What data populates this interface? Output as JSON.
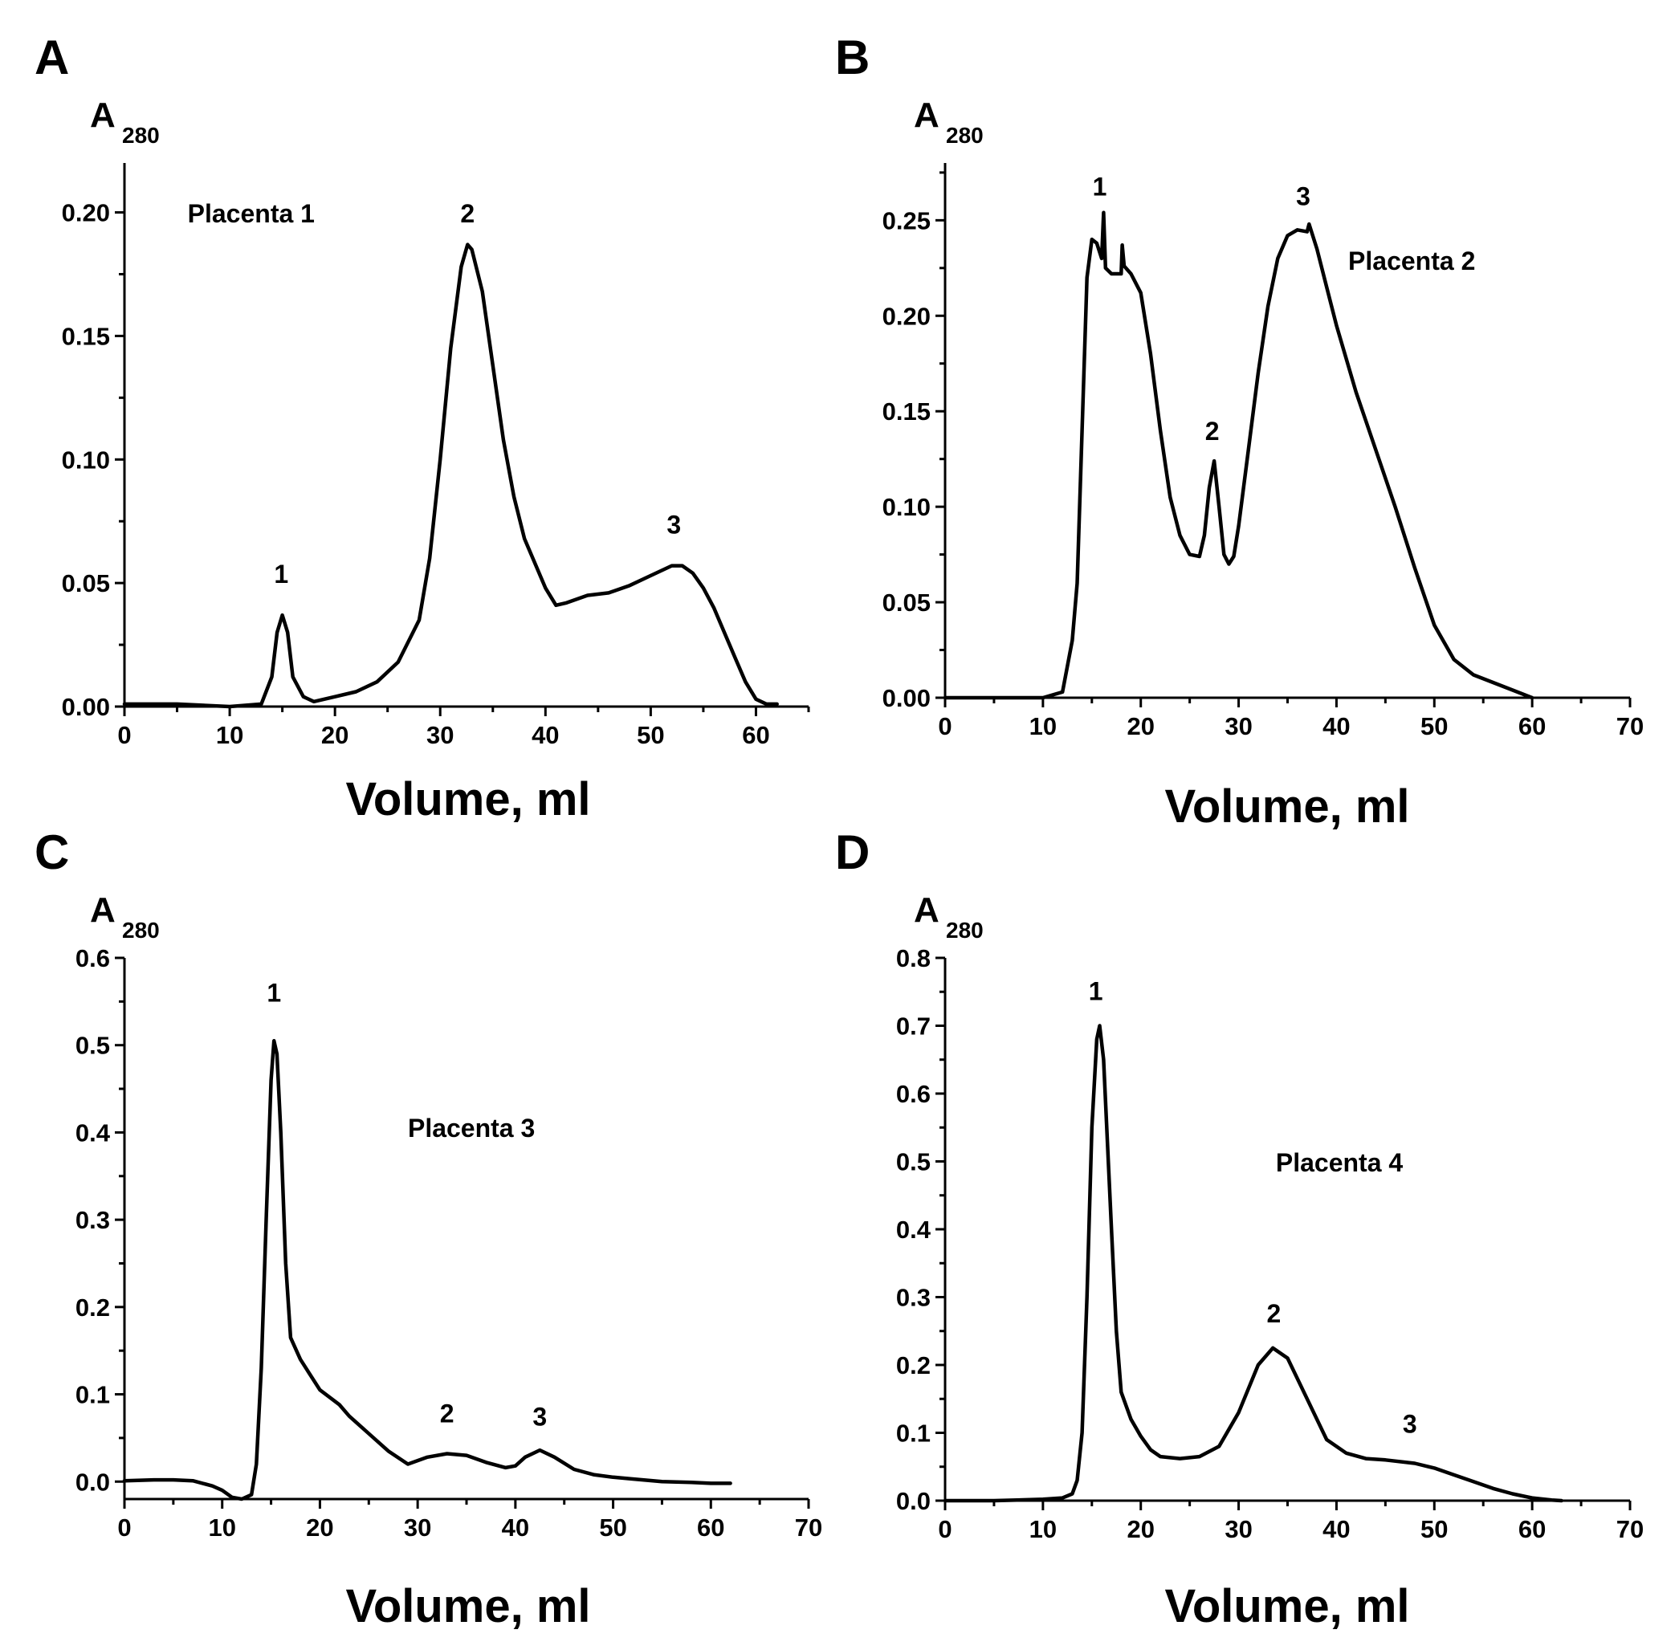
{
  "chart_data": [
    {
      "type": "line",
      "panel": "A",
      "ylabel_main": "A",
      "ylabel_sub": "280",
      "xlabel": "Volume, ml",
      "xlim": [
        0,
        65
      ],
      "ylim": [
        0,
        0.22
      ],
      "xticks": [
        0,
        10,
        20,
        30,
        40,
        50,
        60
      ],
      "xtick_labels": [
        "0",
        "10",
        "20",
        "30",
        "40",
        "50",
        "60"
      ],
      "yticks": [
        0,
        0.05,
        0.1,
        0.15,
        0.2
      ],
      "ytick_labels": [
        "0.00",
        "0.05",
        "0.10",
        "0.15",
        "0.20"
      ],
      "sample": {
        "text": "Placenta 1",
        "x": 6.0,
        "y": 0.196
      },
      "peaks": [
        {
          "label": "1",
          "x": 14.9,
          "y": 0.05
        },
        {
          "label": "2",
          "x": 32.6,
          "y": 0.196
        },
        {
          "label": "3",
          "x": 52.2,
          "y": 0.07
        }
      ],
      "series": [
        {
          "name": "Placenta 1",
          "x": [
            0,
            5,
            10,
            13,
            14,
            14.5,
            15,
            15.5,
            16,
            17,
            18,
            20,
            22,
            24,
            26,
            28,
            29,
            30,
            31,
            32,
            32.6,
            33,
            34,
            35,
            36,
            37,
            38,
            40,
            41,
            42,
            44,
            46,
            48,
            50,
            52,
            53,
            54,
            55,
            56,
            57,
            58,
            59,
            60,
            61,
            62
          ],
          "y": [
            0.001,
            0.001,
            0.0,
            0.001,
            0.012,
            0.03,
            0.037,
            0.03,
            0.012,
            0.004,
            0.002,
            0.004,
            0.006,
            0.01,
            0.018,
            0.035,
            0.06,
            0.1,
            0.145,
            0.178,
            0.187,
            0.185,
            0.168,
            0.138,
            0.108,
            0.085,
            0.068,
            0.048,
            0.041,
            0.042,
            0.045,
            0.046,
            0.049,
            0.053,
            0.057,
            0.057,
            0.054,
            0.048,
            0.04,
            0.03,
            0.02,
            0.01,
            0.003,
            0.001,
            0.001
          ]
        }
      ]
    },
    {
      "type": "line",
      "panel": "B",
      "ylabel_main": "A",
      "ylabel_sub": "280",
      "xlabel": "Volume, ml",
      "xlim": [
        0,
        70
      ],
      "ylim": [
        0,
        0.28
      ],
      "xticks": [
        0,
        10,
        20,
        30,
        40,
        50,
        60,
        70
      ],
      "xtick_labels": [
        "0",
        "10",
        "20",
        "30",
        "40",
        "50",
        "60",
        "70"
      ],
      "yticks": [
        0,
        0.05,
        0.1,
        0.15,
        0.2,
        0.25
      ],
      "ytick_labels": [
        "0.00",
        "0.05",
        "0.10",
        "0.15",
        "0.20",
        "0.25"
      ],
      "sample": {
        "text": "Placenta 2",
        "x": 41.2,
        "y": 0.224
      },
      "peaks": [
        {
          "label": "1",
          "x": 15.8,
          "y": 0.263
        },
        {
          "label": "2",
          "x": 27.3,
          "y": 0.135
        },
        {
          "label": "3",
          "x": 36.6,
          "y": 0.258
        }
      ],
      "series": [
        {
          "name": "Placenta 2",
          "x": [
            0,
            5,
            10,
            12,
            13,
            13.5,
            14,
            14.5,
            15,
            15.5,
            16,
            16.2,
            16.4,
            17,
            18,
            18.1,
            18.3,
            19,
            20,
            21,
            22,
            23,
            24,
            25,
            26,
            26.5,
            27,
            27.5,
            28,
            28.5,
            29,
            29.5,
            30,
            31,
            32,
            33,
            34,
            35,
            36,
            37,
            37.2,
            38,
            39,
            40,
            42,
            44,
            46,
            48,
            50,
            52,
            54,
            56,
            58,
            60
          ],
          "y": [
            0.0,
            0.0,
            0.0,
            0.003,
            0.03,
            0.06,
            0.14,
            0.22,
            0.24,
            0.238,
            0.23,
            0.254,
            0.225,
            0.222,
            0.222,
            0.237,
            0.226,
            0.222,
            0.212,
            0.18,
            0.14,
            0.105,
            0.085,
            0.075,
            0.074,
            0.085,
            0.11,
            0.124,
            0.1,
            0.075,
            0.07,
            0.074,
            0.09,
            0.13,
            0.17,
            0.205,
            0.23,
            0.242,
            0.245,
            0.244,
            0.248,
            0.235,
            0.215,
            0.195,
            0.16,
            0.13,
            0.1,
            0.068,
            0.038,
            0.02,
            0.012,
            0.008,
            0.004,
            0.0
          ]
        }
      ]
    },
    {
      "type": "line",
      "panel": "C",
      "ylabel_main": "A",
      "ylabel_sub": "280",
      "xlabel": "Volume, ml",
      "xlim": [
        0,
        70
      ],
      "ylim": [
        -0.02,
        0.6
      ],
      "xticks": [
        0,
        10,
        20,
        30,
        40,
        50,
        60,
        70
      ],
      "xtick_labels": [
        "0",
        "10",
        "20",
        "30",
        "40",
        "50",
        "60",
        "70"
      ],
      "yticks": [
        0,
        0.1,
        0.2,
        0.3,
        0.4,
        0.5,
        0.6
      ],
      "ytick_labels": [
        "0.0",
        "0.1",
        "0.2",
        "0.3",
        "0.4",
        "0.5",
        "0.6"
      ],
      "sample": {
        "text": "Placenta 3",
        "x": 29.0,
        "y": 0.395
      },
      "peaks": [
        {
          "label": "1",
          "x": 15.3,
          "y": 0.55
        },
        {
          "label": "2",
          "x": 33.0,
          "y": 0.068
        },
        {
          "label": "3",
          "x": 42.5,
          "y": 0.064
        }
      ],
      "series": [
        {
          "name": "Placenta 3",
          "x": [
            0,
            3,
            5,
            7,
            9,
            10,
            11,
            12,
            13,
            13.5,
            14,
            14.5,
            15,
            15.3,
            15.6,
            16,
            16.5,
            17,
            18,
            20,
            22,
            23,
            25,
            27,
            29,
            31,
            33,
            35,
            37,
            39,
            40,
            41,
            42.5,
            44,
            46,
            48,
            50,
            52,
            55,
            58,
            60,
            62
          ],
          "y": [
            0.001,
            0.002,
            0.002,
            0.001,
            -0.005,
            -0.01,
            -0.018,
            -0.02,
            -0.015,
            0.02,
            0.13,
            0.3,
            0.46,
            0.505,
            0.49,
            0.4,
            0.25,
            0.165,
            0.14,
            0.105,
            0.088,
            0.075,
            0.055,
            0.035,
            0.02,
            0.028,
            0.032,
            0.03,
            0.022,
            0.016,
            0.018,
            0.028,
            0.036,
            0.028,
            0.014,
            0.008,
            0.005,
            0.003,
            0.0,
            -0.001,
            -0.002,
            -0.002
          ]
        }
      ]
    },
    {
      "type": "line",
      "panel": "D",
      "ylabel_main": "A",
      "ylabel_sub": "280",
      "xlabel": "Volume, ml",
      "xlim": [
        0,
        70
      ],
      "ylim": [
        0,
        0.8
      ],
      "xticks": [
        0,
        10,
        20,
        30,
        40,
        50,
        60,
        70
      ],
      "xtick_labels": [
        "0",
        "10",
        "20",
        "30",
        "40",
        "50",
        "60",
        "70"
      ],
      "yticks": [
        0,
        0.1,
        0.2,
        0.3,
        0.4,
        0.5,
        0.6,
        0.7,
        0.8
      ],
      "ytick_labels": [
        "0.0",
        "0.1",
        "0.2",
        "0.3",
        "0.4",
        "0.5",
        "0.6",
        "0.7",
        "0.8"
      ],
      "sample": {
        "text": "Placenta 4",
        "x": 33.8,
        "y": 0.485
      },
      "peaks": [
        {
          "label": "1",
          "x": 15.4,
          "y": 0.738
        },
        {
          "label": "2",
          "x": 33.6,
          "y": 0.263
        },
        {
          "label": "3",
          "x": 47.5,
          "y": 0.1
        }
      ],
      "series": [
        {
          "name": "Placenta 4",
          "x": [
            0,
            5,
            10,
            12,
            13,
            13.5,
            14,
            14.5,
            15,
            15.5,
            15.8,
            16.2,
            17,
            17.5,
            18,
            19,
            20,
            21,
            22,
            24,
            26,
            28,
            30,
            32,
            33.5,
            35,
            37,
            39,
            41,
            43,
            45,
            48,
            50,
            52,
            54,
            56,
            58,
            60,
            62,
            63
          ],
          "y": [
            0.0,
            0.0,
            0.002,
            0.004,
            0.01,
            0.03,
            0.1,
            0.3,
            0.55,
            0.68,
            0.7,
            0.65,
            0.4,
            0.25,
            0.16,
            0.12,
            0.095,
            0.075,
            0.065,
            0.062,
            0.065,
            0.08,
            0.13,
            0.2,
            0.225,
            0.21,
            0.15,
            0.09,
            0.07,
            0.062,
            0.06,
            0.055,
            0.048,
            0.038,
            0.028,
            0.018,
            0.01,
            0.004,
            0.001,
            0.0
          ]
        }
      ]
    }
  ]
}
